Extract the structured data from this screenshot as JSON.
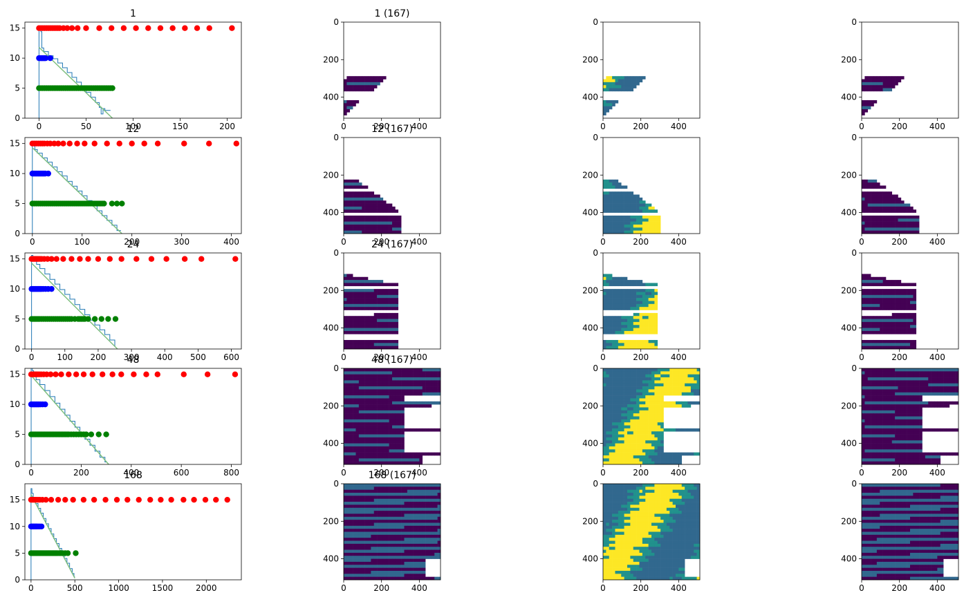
{
  "figure": {
    "rows": [
      {
        "plot_title": "1",
        "image_title": "1 (167)",
        "chart": {
          "xlim": [
            -15,
            215
          ],
          "ylim": [
            0,
            16
          ],
          "xticks": [
            0,
            50,
            100,
            150,
            200
          ],
          "yticks": [
            0,
            5,
            10,
            15
          ],
          "red_x": [
            0,
            2,
            4,
            6,
            8,
            10,
            12,
            14,
            16,
            18,
            20,
            22,
            26,
            30,
            35,
            41,
            50,
            64,
            77,
            90,
            103,
            116,
            129,
            142,
            155,
            168,
            181,
            205
          ],
          "blue_x": [
            0,
            1,
            2,
            3,
            4,
            5,
            6,
            7,
            12
          ],
          "green_x": [
            0,
            2,
            4,
            6,
            8,
            10,
            12,
            14,
            16,
            18,
            20,
            22,
            24,
            26,
            28,
            30,
            32,
            34,
            36,
            38,
            40,
            42,
            44,
            46,
            48,
            50,
            52,
            54,
            56,
            58,
            60,
            62,
            64,
            66,
            68,
            70,
            72,
            74,
            76,
            78
          ],
          "step": [
            [
              0,
              15.3
            ],
            [
              2,
              14.4
            ],
            [
              3,
              11.7
            ],
            [
              5,
              11.1
            ],
            [
              10,
              10.4
            ],
            [
              15,
              9.9
            ],
            [
              20,
              9.2
            ],
            [
              25,
              8.4
            ],
            [
              30,
              7.6
            ],
            [
              35,
              6.8
            ],
            [
              40,
              6.0
            ],
            [
              45,
              5.2
            ],
            [
              50,
              4.3
            ],
            [
              55,
              3.5
            ],
            [
              60,
              2.6
            ],
            [
              64,
              1.8
            ],
            [
              66,
              0.7
            ],
            [
              68,
              1.6
            ],
            [
              70,
              1.3
            ],
            [
              76,
              1.3
            ]
          ],
          "fit": [
            [
              0,
              11.8
            ],
            [
              78,
              0
            ]
          ]
        },
        "images": [
          {
            "panel": "purple",
            "coverage": "lower-left streaks"
          },
          {
            "panel": "yellow",
            "coverage": "lower-left streaks"
          },
          {
            "panel": "purple",
            "coverage": "lower-left streaks"
          }
        ]
      },
      {
        "plot_title": "12",
        "image_title": "12 (167)",
        "chart": {
          "xlim": [
            -15,
            420
          ],
          "ylim": [
            0,
            16
          ],
          "xticks": [
            0,
            100,
            200,
            300,
            400
          ],
          "yticks": [
            0,
            5,
            10,
            15
          ],
          "red_x": [
            0,
            4,
            8,
            12,
            16,
            20,
            24,
            30,
            36,
            44,
            52,
            62,
            75,
            90,
            105,
            125,
            150,
            175,
            200,
            225,
            252,
            305,
            355,
            410
          ],
          "blue_x": [
            0,
            2,
            4,
            6,
            8,
            10,
            12,
            14,
            16,
            18,
            20,
            22,
            24,
            26,
            32
          ],
          "green_x": [
            0,
            4,
            8,
            12,
            16,
            20,
            24,
            28,
            32,
            36,
            40,
            44,
            48,
            52,
            56,
            60,
            64,
            68,
            72,
            76,
            80,
            84,
            88,
            92,
            96,
            100,
            104,
            108,
            112,
            116,
            120,
            124,
            128,
            132,
            136,
            140,
            144,
            160,
            170,
            180
          ],
          "step": [
            [
              0,
              14.9
            ],
            [
              5,
              14.0
            ],
            [
              10,
              13.4
            ],
            [
              20,
              12.6
            ],
            [
              30,
              11.9
            ],
            [
              40,
              11.1
            ],
            [
              50,
              10.3
            ],
            [
              60,
              9.6
            ],
            [
              70,
              8.7
            ],
            [
              80,
              7.9
            ],
            [
              90,
              7.1
            ],
            [
              100,
              6.3
            ],
            [
              110,
              5.5
            ],
            [
              120,
              4.6
            ],
            [
              130,
              3.8
            ],
            [
              140,
              3.0
            ],
            [
              150,
              2.2
            ],
            [
              160,
              1.4
            ],
            [
              170,
              0.5
            ],
            [
              178,
              0.5
            ]
          ],
          "fit": [
            [
              0,
              14.3
            ],
            [
              180,
              0
            ]
          ]
        },
        "images": [
          {
            "panel": "purple",
            "coverage": "lower-left band"
          },
          {
            "panel": "yellow",
            "coverage": "lower-left band"
          },
          {
            "panel": "purple",
            "coverage": "lower-left band"
          }
        ]
      },
      {
        "plot_title": "24",
        "image_title": "24 (167)",
        "chart": {
          "xlim": [
            -20,
            630
          ],
          "ylim": [
            0,
            16
          ],
          "xticks": [
            0,
            100,
            200,
            300,
            400,
            500,
            600
          ],
          "yticks": [
            0,
            5,
            10,
            15
          ],
          "red_x": [
            0,
            4,
            8,
            12,
            16,
            20,
            25,
            30,
            38,
            48,
            60,
            75,
            95,
            120,
            145,
            170,
            200,
            235,
            270,
            315,
            360,
            405,
            460,
            510,
            612
          ],
          "blue_x": [
            0,
            3,
            6,
            9,
            12,
            15,
            18,
            21,
            24,
            27,
            30,
            35,
            42,
            50,
            60
          ],
          "green_x": [
            0,
            4,
            8,
            12,
            16,
            20,
            24,
            30,
            36,
            42,
            48,
            54,
            60,
            66,
            72,
            78,
            84,
            90,
            96,
            102,
            108,
            114,
            120,
            130,
            140,
            145,
            150,
            155,
            160,
            170,
            190,
            210,
            230,
            252
          ],
          "step": [
            [
              0,
              15.6
            ],
            [
              4,
              15.1
            ],
            [
              8,
              14.7
            ],
            [
              15,
              14.1
            ],
            [
              25,
              13.4
            ],
            [
              40,
              12.5
            ],
            [
              55,
              11.6
            ],
            [
              70,
              10.8
            ],
            [
              85,
              9.9
            ],
            [
              100,
              9.1
            ],
            [
              115,
              8.3
            ],
            [
              130,
              7.4
            ],
            [
              145,
              6.6
            ],
            [
              160,
              5.7
            ],
            [
              175,
              4.8
            ],
            [
              190,
              4.0
            ],
            [
              205,
              3.2
            ],
            [
              220,
              2.4
            ],
            [
              235,
              1.5
            ],
            [
              250,
              0.4
            ],
            [
              252,
              0.4
            ]
          ],
          "fit": [
            [
              0,
              14.3
            ],
            [
              258,
              0
            ]
          ]
        },
        "images": [
          {
            "panel": "purple",
            "coverage": "left half"
          },
          {
            "panel": "yellow",
            "coverage": "left half"
          },
          {
            "panel": "purple",
            "coverage": "left half"
          }
        ]
      },
      {
        "plot_title": "48",
        "image_title": "48 (167)",
        "chart": {
          "xlim": [
            -25,
            840
          ],
          "ylim": [
            0,
            16
          ],
          "xticks": [
            0,
            200,
            400,
            600,
            800
          ],
          "yticks": [
            0,
            5,
            10,
            15
          ],
          "red_x": [
            0,
            5,
            10,
            15,
            20,
            25,
            32,
            40,
            50,
            62,
            78,
            98,
            120,
            150,
            180,
            210,
            245,
            285,
            325,
            360,
            410,
            460,
            505,
            610,
            705,
            815
          ],
          "blue_x": [
            0,
            4,
            8,
            12,
            16,
            20,
            24,
            28,
            32,
            38,
            46,
            56
          ],
          "green_x": [
            0,
            6,
            12,
            18,
            24,
            30,
            36,
            42,
            48,
            54,
            60,
            66,
            72,
            78,
            84,
            90,
            96,
            102,
            108,
            114,
            120,
            126,
            132,
            138,
            144,
            150,
            160,
            170,
            180,
            190,
            200,
            210,
            220,
            240,
            270,
            300
          ],
          "step": [
            [
              0,
              16.3
            ],
            [
              5,
              15.6
            ],
            [
              10,
              14.8
            ],
            [
              20,
              14.1
            ],
            [
              35,
              13.3
            ],
            [
              55,
              12.3
            ],
            [
              75,
              11.3
            ],
            [
              95,
              10.2
            ],
            [
              115,
              9.2
            ],
            [
              135,
              8.2
            ],
            [
              155,
              7.2
            ],
            [
              175,
              6.2
            ],
            [
              195,
              5.1
            ],
            [
              215,
              4.2
            ],
            [
              235,
              3.2
            ],
            [
              255,
              2.2
            ],
            [
              275,
              1.2
            ],
            [
              295,
              0.4
            ],
            [
              300,
              0.4
            ]
          ],
          "fit": [
            [
              0,
              14.8
            ],
            [
              310,
              0
            ]
          ]
        },
        "images": [
          {
            "panel": "purple",
            "coverage": "most of frame"
          },
          {
            "panel": "yellow",
            "coverage": "most of frame"
          },
          {
            "panel": "purple",
            "coverage": "most of frame"
          }
        ]
      },
      {
        "plot_title": "168",
        "image_title": "168 (167)",
        "chart": {
          "xlim": [
            -70,
            2400
          ],
          "ylim": [
            0,
            18
          ],
          "xticks": [
            0,
            500,
            1000,
            1500,
            2000
          ],
          "yticks": [
            0,
            5,
            10,
            15
          ],
          "red_x": [
            0,
            15,
            30,
            45,
            60,
            80,
            100,
            130,
            170,
            230,
            310,
            390,
            480,
            600,
            720,
            850,
            980,
            1100,
            1230,
            1360,
            1480,
            1600,
            1740,
            1860,
            1990,
            2110,
            2240
          ],
          "blue_x": [
            0,
            10,
            20,
            30,
            40,
            50,
            60,
            70,
            85,
            100,
            120
          ],
          "green_x": [
            0,
            15,
            30,
            45,
            60,
            75,
            90,
            105,
            120,
            135,
            150,
            165,
            180,
            195,
            210,
            225,
            240,
            255,
            270,
            285,
            300,
            320,
            340,
            360,
            390,
            420,
            510
          ],
          "step": [
            [
              0,
              17.1
            ],
            [
              10,
              16.2
            ],
            [
              25,
              15.2
            ],
            [
              50,
              14.3
            ],
            [
              80,
              13.4
            ],
            [
              110,
              12.5
            ],
            [
              140,
              11.5
            ],
            [
              170,
              10.5
            ],
            [
              200,
              9.6
            ],
            [
              230,
              8.6
            ],
            [
              260,
              7.7
            ],
            [
              290,
              6.8
            ],
            [
              320,
              5.9
            ],
            [
              350,
              4.9
            ],
            [
              380,
              4.0
            ],
            [
              410,
              3.1
            ],
            [
              440,
              2.1
            ],
            [
              470,
              1.2
            ],
            [
              490,
              0.6
            ],
            [
              500,
              0.6
            ]
          ],
          "fit": [
            [
              0,
              16.0
            ],
            [
              500,
              0.3
            ]
          ]
        },
        "images": [
          {
            "panel": "purple",
            "coverage": "full frame"
          },
          {
            "panel": "yellow",
            "coverage": "full frame"
          },
          {
            "panel": "purple",
            "coverage": "full frame"
          }
        ]
      }
    ],
    "image_axis": {
      "xticks": [
        0,
        200,
        400
      ],
      "yticks": [
        0,
        200,
        400
      ],
      "extent": 512
    },
    "colors": {
      "red": "#ff0000",
      "blue": "#0000ff",
      "green": "#008000",
      "step": "#1f77b4",
      "fit": "#7fbf7f",
      "viridis_dark": "#440154",
      "viridis_mid": "#31688e",
      "viridis_teal": "#21918c",
      "viridis_bright": "#fde725"
    }
  },
  "chart_data": [
    {
      "type": "scatter",
      "title": "1",
      "xlim": [
        -15,
        215
      ],
      "ylim": [
        0,
        16
      ],
      "series": [
        {
          "values_ref": "figure.rows.0.chart"
        }
      ]
    },
    {
      "type": "scatter",
      "title": "12",
      "xlim": [
        -15,
        420
      ],
      "ylim": [
        0,
        16
      ],
      "series": [
        {
          "values_ref": "figure.rows.1.chart"
        }
      ]
    },
    {
      "type": "scatter",
      "title": "24",
      "xlim": [
        -20,
        630
      ],
      "ylim": [
        0,
        16
      ],
      "series": [
        {
          "values_ref": "figure.rows.2.chart"
        }
      ]
    },
    {
      "type": "scatter",
      "title": "48",
      "xlim": [
        -25,
        840
      ],
      "ylim": [
        0,
        16
      ],
      "series": [
        {
          "values_ref": "figure.rows.3.chart"
        }
      ]
    },
    {
      "type": "scatter",
      "title": "168",
      "xlim": [
        -70,
        2400
      ],
      "ylim": [
        0,
        18
      ],
      "series": [
        {
          "values_ref": "figure.rows.4.chart"
        }
      ]
    },
    {
      "type": "heatmap",
      "title": "1 (167)"
    },
    {
      "type": "heatmap",
      "title": "12 (167)"
    },
    {
      "type": "heatmap",
      "title": "24 (167)"
    },
    {
      "type": "heatmap",
      "title": "48 (167)"
    },
    {
      "type": "heatmap",
      "title": "168 (167)"
    }
  ]
}
